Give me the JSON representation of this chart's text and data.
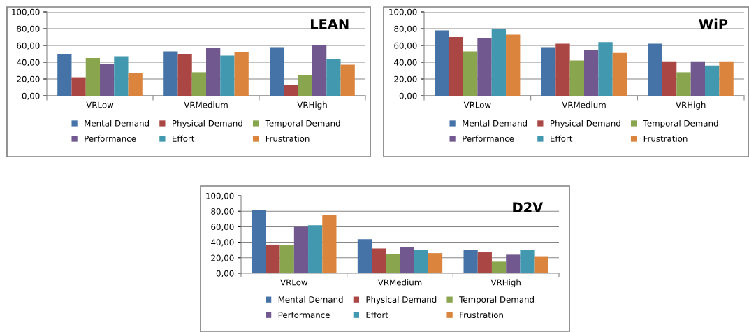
{
  "chart_data": [
    {
      "type": "bar",
      "title": "LEAN",
      "categories": [
        "VRLow",
        "VRMedium",
        "VRHigh"
      ],
      "series": [
        {
          "name": "Mental Demand",
          "color": "#4572a7",
          "values": [
            50,
            53,
            58
          ]
        },
        {
          "name": "Physical Demand",
          "color": "#aa4643",
          "values": [
            22,
            50,
            13
          ]
        },
        {
          "name": "Temporal Demand",
          "color": "#89a54e",
          "values": [
            45,
            28,
            25
          ]
        },
        {
          "name": "Performance",
          "color": "#71588f",
          "values": [
            38,
            57,
            60
          ]
        },
        {
          "name": "Effort",
          "color": "#4198af",
          "values": [
            47,
            48,
            44
          ]
        },
        {
          "name": "Frustration",
          "color": "#db843d",
          "values": [
            27,
            52,
            37
          ]
        }
      ],
      "ylim": [
        0,
        100
      ],
      "yticks": [
        {
          "value": 0,
          "label": "0,00"
        },
        {
          "value": 20,
          "label": "20,00"
        },
        {
          "value": 40,
          "label": "40,00"
        },
        {
          "value": 60,
          "label": "60,00"
        },
        {
          "value": 80,
          "label": "80,00"
        },
        {
          "value": 100,
          "label": "100,00"
        }
      ],
      "grid": "y",
      "legend": "bottom"
    },
    {
      "type": "bar",
      "title": "WiP",
      "categories": [
        "VRLow",
        "VRMedium",
        "VRHigh"
      ],
      "series": [
        {
          "name": "Mental Demand",
          "color": "#4572a7",
          "values": [
            78,
            58,
            62
          ]
        },
        {
          "name": "Physical Demand",
          "color": "#aa4643",
          "values": [
            70,
            62,
            41
          ]
        },
        {
          "name": "Temporal Demand",
          "color": "#89a54e",
          "values": [
            53,
            42,
            28
          ]
        },
        {
          "name": "Performance",
          "color": "#71588f",
          "values": [
            69,
            55,
            41
          ]
        },
        {
          "name": "Effort",
          "color": "#4198af",
          "values": [
            80,
            64,
            36
          ]
        },
        {
          "name": "Frustration",
          "color": "#db843d",
          "values": [
            73,
            51,
            41
          ]
        }
      ],
      "ylim": [
        0,
        100
      ],
      "yticks": [
        {
          "value": 0,
          "label": "0,00"
        },
        {
          "value": 20,
          "label": "20,00"
        },
        {
          "value": 40,
          "label": "40,00"
        },
        {
          "value": 60,
          "label": "60,00"
        },
        {
          "value": 80,
          "label": "80,00"
        },
        {
          "value": 100,
          "label": "100,00"
        }
      ],
      "grid": "y",
      "legend": "bottom"
    },
    {
      "type": "bar",
      "title": "D2V",
      "categories": [
        "VRLow",
        "VRMedium",
        "VRHigh"
      ],
      "series": [
        {
          "name": "Mental Demand",
          "color": "#4572a7",
          "values": [
            81,
            44,
            30
          ]
        },
        {
          "name": "Physical Demand",
          "color": "#aa4643",
          "values": [
            37,
            32,
            27
          ]
        },
        {
          "name": "Temporal Demand",
          "color": "#89a54e",
          "values": [
            36,
            25,
            15
          ]
        },
        {
          "name": "Performance",
          "color": "#71588f",
          "values": [
            60,
            34,
            24
          ]
        },
        {
          "name": "Effort",
          "color": "#4198af",
          "values": [
            62,
            30,
            30
          ]
        },
        {
          "name": "Frustration",
          "color": "#db843d",
          "values": [
            75,
            26,
            22
          ]
        }
      ],
      "ylim": [
        0,
        100
      ],
      "yticks": [
        {
          "value": 0,
          "label": "0,00"
        },
        {
          "value": 20,
          "label": "20,00"
        },
        {
          "value": 40,
          "label": "40,00"
        },
        {
          "value": 60,
          "label": "60,00"
        },
        {
          "value": 80,
          "label": "80,00"
        },
        {
          "value": 100,
          "label": "100,00"
        }
      ],
      "grid": "y",
      "legend": "bottom"
    }
  ]
}
